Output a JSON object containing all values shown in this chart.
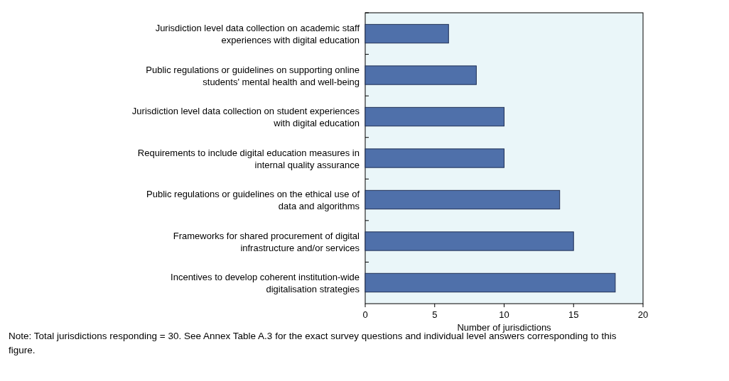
{
  "chart_data": {
    "type": "bar",
    "orientation": "horizontal",
    "xlabel": "Number of jurisdictions",
    "categories": [
      "Jurisdiction level data collection on academic staff experiences with digital education",
      "Public regulations or guidelines on supporting online students' mental health and well-being",
      "Jurisdiction level data collection on student experiences with digital education",
      "Requirements to include digital education measures in internal quality assurance",
      "Public regulations or guidelines on the ethical use of data and algorithms",
      "Frameworks for shared procurement of digital infrastructure and/or services",
      "Incentives to develop coherent institution-wide digitalisation strategies"
    ],
    "values": [
      6,
      8,
      10,
      10,
      14,
      15,
      18
    ],
    "color": "#4f70aa",
    "xlim": [
      0,
      20
    ],
    "xticks": [
      0,
      5,
      10,
      15,
      20
    ],
    "grid": false,
    "annotations": [
      "Note: Total jurisdictions responding = 30. See Annex Table A.3 for the exact survey questions and individual level answers corresponding to this figure."
    ]
  }
}
